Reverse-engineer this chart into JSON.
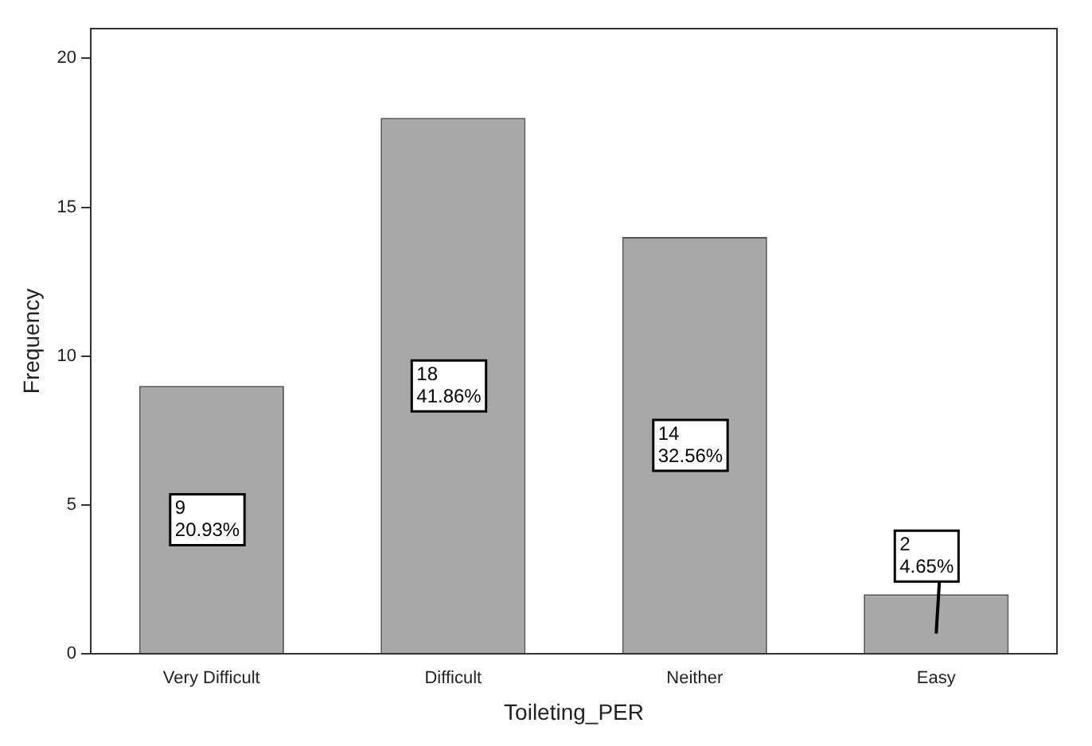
{
  "chart_data": {
    "type": "bar",
    "xlabel": "Toileting_PER",
    "ylabel": "Frequency",
    "categories": [
      "Very Difficult",
      "Difficult",
      "Neither",
      "Easy"
    ],
    "values": [
      9,
      18,
      14,
      2
    ],
    "color": "#a8a8a8",
    "value_labels": [
      "9\n20.93%",
      "18\n41.86%",
      "14\n32.56%",
      "2\n4.65%"
    ],
    "ylim": [
      0,
      21
    ],
    "yticks": [
      0,
      5,
      10,
      15,
      20
    ],
    "grid": false,
    "legend": false
  }
}
